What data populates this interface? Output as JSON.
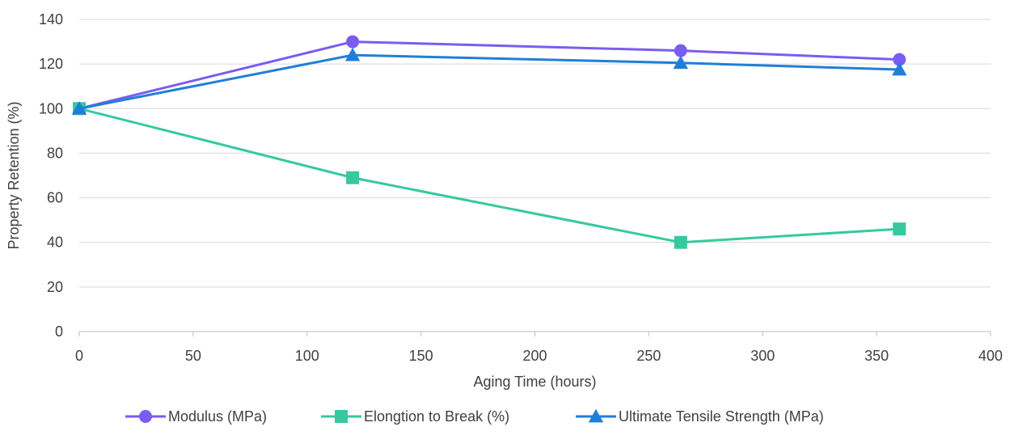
{
  "chart_data": {
    "type": "line",
    "title": "",
    "xlabel": "Aging Time (hours)",
    "ylabel": "Property Retention (%)",
    "xlim": [
      0,
      400
    ],
    "ylim": [
      0,
      140
    ],
    "x_ticks": [
      "0",
      "50",
      "100",
      "150",
      "200",
      "250",
      "300",
      "350",
      "400"
    ],
    "y_ticks": [
      "0",
      "20",
      "40",
      "60",
      "80",
      "100",
      "120",
      "140"
    ],
    "grid": "horizontal",
    "legend_position": "bottom",
    "series": [
      {
        "name": "Modulus (MPa)",
        "color": "#7b5cf0",
        "marker": "circle",
        "x": [
          0,
          120,
          264,
          360
        ],
        "values": [
          100,
          130,
          126,
          122
        ]
      },
      {
        "name": "Elongtion to Break (%)",
        "color": "#36c9a0",
        "marker": "square",
        "x": [
          0,
          120,
          264,
          360
        ],
        "values": [
          100,
          69,
          40,
          46
        ]
      },
      {
        "name": "Ultimate Tensile Strength (MPa)",
        "color": "#1f7fd8",
        "marker": "triangle",
        "x": [
          0,
          120,
          264,
          360
        ],
        "values": [
          100,
          124,
          120.5,
          117.5
        ]
      }
    ]
  }
}
